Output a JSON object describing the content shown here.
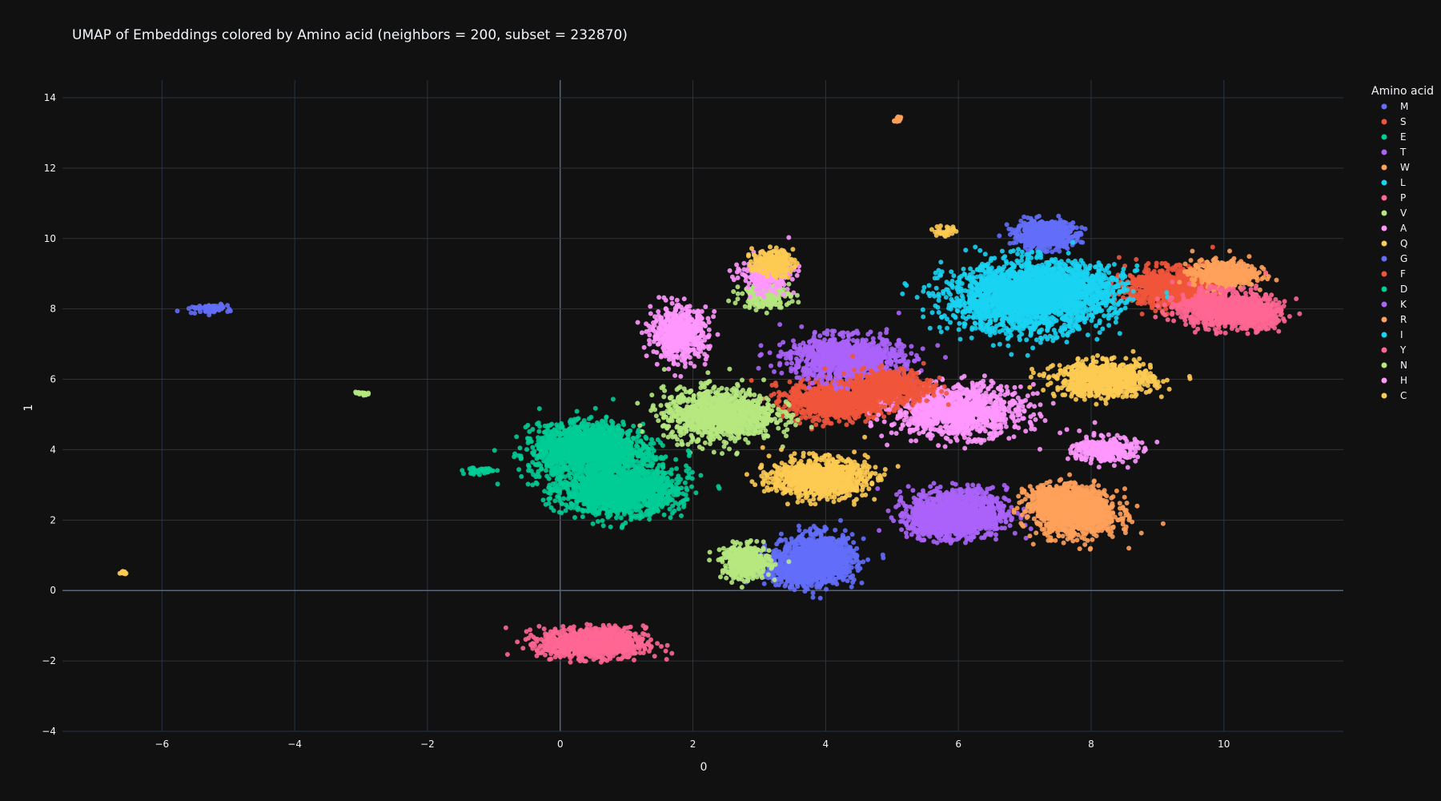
{
  "chart_data": {
    "type": "scatter",
    "title": "UMAP of Embeddings colored by Amino acid (neighbors = 200, subset = 232870)",
    "xlabel": "0",
    "ylabel": "1",
    "xlim": [
      -7.5,
      11.8
    ],
    "ylim": [
      -4,
      14.5
    ],
    "xticks": [
      -6,
      -4,
      -2,
      0,
      2,
      4,
      6,
      8,
      10
    ],
    "yticks": [
      -4,
      -2,
      0,
      2,
      4,
      6,
      8,
      10,
      12,
      14
    ],
    "grid": true,
    "legend_title": "Amino acid",
    "legend_position": "top-right",
    "series": [
      {
        "name": "M",
        "color": "#636efa",
        "clusters": [
          [
            7.3,
            10.1,
            0.35,
            0.3,
            700
          ],
          [
            3.9,
            0.9,
            0.45,
            0.55,
            1100
          ],
          [
            -5.3,
            8.0,
            0.25,
            0.1,
            60
          ]
        ]
      },
      {
        "name": "S",
        "color": "#ef553b",
        "clusters": [
          [
            9.2,
            8.6,
            0.55,
            0.45,
            900
          ],
          [
            4.2,
            5.4,
            0.65,
            0.45,
            1000
          ]
        ]
      },
      {
        "name": "E",
        "color": "#00cc96",
        "clusters": [
          [
            0.4,
            4.1,
            0.6,
            0.5,
            1400
          ],
          [
            0.9,
            2.8,
            0.7,
            0.5,
            1400
          ],
          [
            -1.2,
            3.4,
            0.2,
            0.08,
            50
          ]
        ]
      },
      {
        "name": "T",
        "color": "#ab63fa",
        "clusters": [
          [
            4.3,
            6.6,
            0.7,
            0.5,
            1100
          ],
          [
            6.0,
            2.2,
            0.6,
            0.55,
            1100
          ]
        ]
      },
      {
        "name": "W",
        "color": "#ffa15a",
        "clusters": [
          [
            10.0,
            9.0,
            0.4,
            0.3,
            500
          ],
          [
            7.8,
            2.2,
            0.5,
            0.55,
            1000
          ],
          [
            5.1,
            13.4,
            0.04,
            0.1,
            15
          ]
        ]
      },
      {
        "name": "L",
        "color": "#19d3f3",
        "clusters": [
          [
            7.0,
            8.3,
            1.0,
            0.8,
            1800
          ]
        ]
      },
      {
        "name": "P",
        "color": "#ff6692",
        "clusters": [
          [
            10.0,
            8.0,
            0.55,
            0.4,
            900
          ],
          [
            0.5,
            -1.5,
            0.65,
            0.35,
            1000
          ]
        ]
      },
      {
        "name": "V",
        "color": "#b6e880",
        "clusters": [
          [
            2.4,
            5.0,
            0.7,
            0.6,
            1100
          ],
          [
            -3.0,
            5.6,
            0.08,
            0.05,
            20
          ]
        ]
      },
      {
        "name": "A",
        "color": "#ff97ff",
        "clusters": [
          [
            6.0,
            5.1,
            0.8,
            0.6,
            1100
          ],
          [
            1.8,
            7.3,
            0.35,
            0.6,
            600
          ]
        ]
      },
      {
        "name": "Q",
        "color": "#fecb52",
        "clusters": [
          [
            8.2,
            6.0,
            0.6,
            0.4,
            800
          ],
          [
            3.9,
            3.2,
            0.6,
            0.45,
            900
          ],
          [
            5.8,
            10.2,
            0.15,
            0.15,
            30
          ]
        ]
      },
      {
        "name": "G",
        "color": "#636efa",
        "clusters": [
          [
            3.6,
            0.6,
            0.4,
            0.4,
            500
          ]
        ]
      },
      {
        "name": "F",
        "color": "#ef553b",
        "clusters": [
          [
            5.0,
            5.8,
            0.5,
            0.4,
            500
          ]
        ]
      },
      {
        "name": "D",
        "color": "#00cc96",
        "clusters": [
          [
            0.6,
            3.5,
            0.9,
            0.9,
            600
          ]
        ]
      },
      {
        "name": "K",
        "color": "#ab63fa",
        "clusters": [
          [
            5.8,
            2.0,
            0.4,
            0.4,
            500
          ]
        ]
      },
      {
        "name": "R",
        "color": "#ffa15a",
        "clusters": [
          [
            7.5,
            2.5,
            0.4,
            0.4,
            500
          ]
        ]
      },
      {
        "name": "I",
        "color": "#19d3f3",
        "clusters": [
          [
            7.5,
            8.6,
            0.8,
            0.6,
            800
          ]
        ]
      },
      {
        "name": "Y",
        "color": "#ff6692",
        "clusters": [
          [
            10.5,
            7.8,
            0.3,
            0.3,
            300
          ]
        ]
      },
      {
        "name": "N",
        "color": "#b6e880",
        "clusters": [
          [
            2.8,
            0.8,
            0.3,
            0.4,
            400
          ],
          [
            3.1,
            8.4,
            0.3,
            0.3,
            200
          ]
        ]
      },
      {
        "name": "H",
        "color": "#ff97ff",
        "clusters": [
          [
            8.2,
            4.0,
            0.4,
            0.3,
            300
          ],
          [
            3.1,
            9.0,
            0.3,
            0.4,
            300
          ]
        ]
      },
      {
        "name": "C",
        "color": "#fecb52",
        "clusters": [
          [
            3.2,
            9.3,
            0.25,
            0.3,
            200
          ],
          [
            -6.6,
            0.5,
            0.05,
            0.05,
            10
          ]
        ]
      }
    ]
  }
}
